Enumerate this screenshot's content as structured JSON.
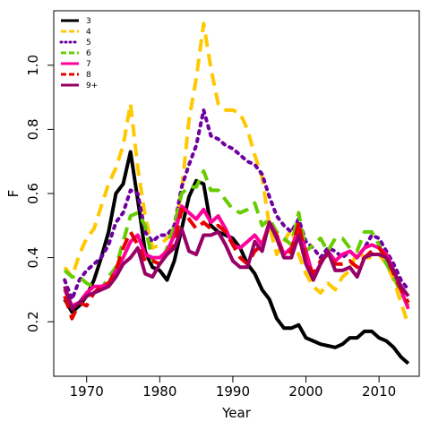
{
  "chart_data": {
    "type": "line",
    "xlabel": "Year",
    "ylabel": "F",
    "xlim": [
      1965.5,
      2015.5
    ],
    "ylim": [
      0.03,
      1.17
    ],
    "xticks": [
      1970,
      1980,
      1990,
      2000,
      2010
    ],
    "yticks": [
      0.2,
      0.4,
      0.6,
      0.8,
      1.0
    ],
    "ytick_labels": [
      "0.2",
      "0.4",
      "0.6",
      "0.8",
      "1.0"
    ],
    "legend_position": "top-left",
    "x": [
      1967,
      1968,
      1969,
      1970,
      1971,
      1972,
      1973,
      1974,
      1975,
      1976,
      1977,
      1978,
      1979,
      1980,
      1981,
      1982,
      1983,
      1984,
      1985,
      1986,
      1987,
      1988,
      1989,
      1990,
      1991,
      1992,
      1993,
      1994,
      1995,
      1996,
      1997,
      1998,
      1999,
      2000,
      2001,
      2002,
      2003,
      2004,
      2005,
      2006,
      2007,
      2008,
      2009,
      2010,
      2011,
      2012,
      2013,
      2014
    ],
    "series": [
      {
        "name": "3",
        "color": "#000000",
        "dash": "solid",
        "values": [
          0.27,
          0.23,
          0.25,
          0.28,
          0.33,
          0.4,
          0.48,
          0.6,
          0.63,
          0.73,
          0.58,
          0.42,
          0.37,
          0.36,
          0.33,
          0.39,
          0.49,
          0.59,
          0.64,
          0.63,
          0.5,
          0.48,
          0.47,
          0.46,
          0.43,
          0.38,
          0.35,
          0.3,
          0.27,
          0.21,
          0.18,
          0.18,
          0.19,
          0.15,
          0.14,
          0.13,
          0.125,
          0.12,
          0.13,
          0.15,
          0.15,
          0.17,
          0.17,
          0.15,
          0.14,
          0.12,
          0.09,
          0.07
        ]
      },
      {
        "name": "4",
        "color": "#FFC800",
        "dash": "dashed",
        "values": [
          0.37,
          0.34,
          0.41,
          0.46,
          0.49,
          0.56,
          0.63,
          0.68,
          0.75,
          0.88,
          0.68,
          0.53,
          0.43,
          0.44,
          0.46,
          0.48,
          0.61,
          0.83,
          0.96,
          1.13,
          0.99,
          0.88,
          0.86,
          0.86,
          0.85,
          0.8,
          0.72,
          0.65,
          0.5,
          0.41,
          0.45,
          0.49,
          0.41,
          0.35,
          0.31,
          0.29,
          0.32,
          0.3,
          0.34,
          0.36,
          0.42,
          0.4,
          0.4,
          0.41,
          0.38,
          0.33,
          0.26,
          0.19
        ]
      },
      {
        "name": "5",
        "color": "#6E009F",
        "dash": "dotted",
        "values": [
          0.33,
          0.27,
          0.33,
          0.36,
          0.38,
          0.4,
          0.44,
          0.51,
          0.54,
          0.61,
          0.6,
          0.48,
          0.45,
          0.47,
          0.47,
          0.5,
          0.62,
          0.69,
          0.75,
          0.86,
          0.78,
          0.77,
          0.75,
          0.74,
          0.72,
          0.7,
          0.69,
          0.66,
          0.59,
          0.53,
          0.5,
          0.48,
          0.52,
          0.45,
          0.43,
          0.4,
          0.43,
          0.42,
          0.4,
          0.42,
          0.4,
          0.43,
          0.47,
          0.46,
          0.42,
          0.38,
          0.33,
          0.3
        ]
      },
      {
        "name": "6",
        "color": "#66CC00",
        "dash": "dashed",
        "values": [
          0.36,
          0.34,
          0.34,
          0.32,
          0.31,
          0.3,
          0.34,
          0.37,
          0.45,
          0.53,
          0.54,
          0.5,
          0.39,
          0.38,
          0.43,
          0.5,
          0.6,
          0.62,
          0.62,
          0.67,
          0.61,
          0.61,
          0.58,
          0.55,
          0.54,
          0.55,
          0.57,
          0.5,
          0.52,
          0.48,
          0.46,
          0.44,
          0.54,
          0.42,
          0.44,
          0.46,
          0.42,
          0.46,
          0.46,
          0.43,
          0.42,
          0.48,
          0.48,
          0.44,
          0.38,
          0.34,
          0.29,
          0.25
        ]
      },
      {
        "name": "7",
        "color": "#FF0099",
        "dash": "solid",
        "values": [
          0.3,
          0.25,
          0.26,
          0.29,
          0.31,
          0.31,
          0.32,
          0.36,
          0.4,
          0.45,
          0.47,
          0.41,
          0.4,
          0.4,
          0.42,
          0.47,
          0.56,
          0.54,
          0.52,
          0.55,
          0.51,
          0.53,
          0.49,
          0.44,
          0.43,
          0.45,
          0.47,
          0.44,
          0.51,
          0.47,
          0.41,
          0.43,
          0.49,
          0.42,
          0.34,
          0.38,
          0.42,
          0.39,
          0.41,
          0.42,
          0.4,
          0.43,
          0.44,
          0.43,
          0.41,
          0.36,
          0.3,
          0.24
        ]
      },
      {
        "name": "8",
        "color": "#E60000",
        "dash": "dashed",
        "values": [
          0.28,
          0.21,
          0.26,
          0.25,
          0.29,
          0.31,
          0.32,
          0.36,
          0.43,
          0.48,
          0.44,
          0.39,
          0.39,
          0.38,
          0.41,
          0.44,
          0.55,
          0.52,
          0.49,
          0.51,
          0.49,
          0.5,
          0.48,
          0.44,
          0.4,
          0.38,
          0.42,
          0.44,
          0.5,
          0.47,
          0.4,
          0.42,
          0.51,
          0.39,
          0.35,
          0.39,
          0.41,
          0.38,
          0.38,
          0.39,
          0.37,
          0.4,
          0.42,
          0.43,
          0.4,
          0.35,
          0.3,
          0.26
        ]
      },
      {
        "name": "9+",
        "color": "#990066",
        "dash": "solid",
        "values": [
          0.31,
          0.24,
          0.26,
          0.28,
          0.29,
          0.3,
          0.31,
          0.34,
          0.38,
          0.4,
          0.43,
          0.35,
          0.34,
          0.38,
          0.41,
          0.43,
          0.49,
          0.42,
          0.41,
          0.47,
          0.47,
          0.48,
          0.44,
          0.39,
          0.37,
          0.37,
          0.45,
          0.42,
          0.51,
          0.46,
          0.4,
          0.4,
          0.47,
          0.38,
          0.33,
          0.38,
          0.42,
          0.36,
          0.36,
          0.37,
          0.34,
          0.4,
          0.41,
          0.41,
          0.4,
          0.36,
          0.31,
          0.28
        ]
      }
    ]
  }
}
